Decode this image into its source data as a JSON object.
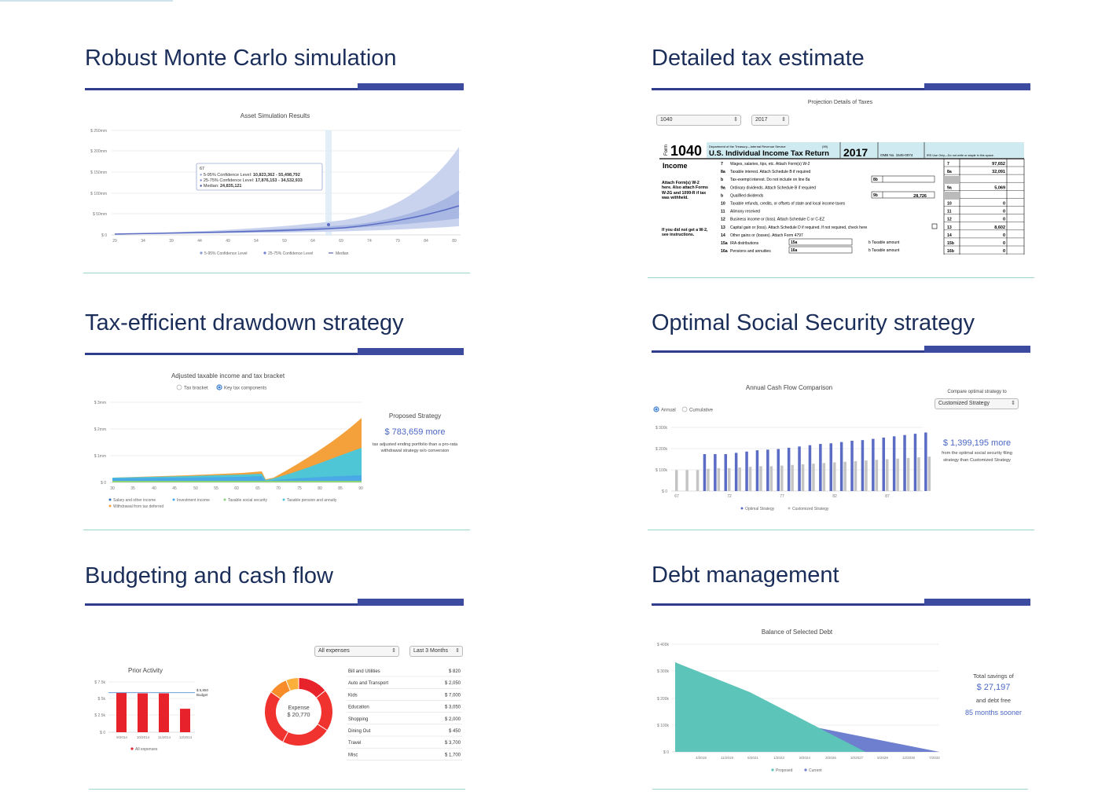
{
  "features": {
    "monte_carlo": {
      "title": "Robust Monte Carlo simulation"
    },
    "tax_estimate": {
      "title": "Detailed tax estimate"
    },
    "drawdown": {
      "title": "Tax-efficient drawdown strategy"
    },
    "social_security": {
      "title": "Optimal Social Security strategy"
    },
    "budgeting": {
      "title": "Budgeting and cash flow"
    },
    "debt": {
      "title": "Debt management"
    }
  },
  "colors": {
    "heading": "#1b2e5a",
    "accent": "#3c4aa0",
    "teal": "#5cc4b8",
    "blue": "#6f7fd0",
    "orange": "#f4a13b",
    "red": "#e8222a"
  },
  "monte_carlo_chart": {
    "title": "Asset Simulation Results",
    "y_ticks": [
      "$ 250mm",
      "$ 200mm",
      "$ 150mm",
      "$ 100mm",
      "$ 50mm",
      "$ 0"
    ],
    "x_ticks": [
      "29",
      "34",
      "39",
      "44",
      "49",
      "54",
      "59",
      "64",
      "69",
      "74",
      "79",
      "84",
      "89"
    ],
    "tooltip": {
      "age": "67",
      "line1_label": "5-95% Confidence Level:",
      "line1_value": "10,823,362 - 55,498,792",
      "line2_label": "25-75% Confidence Level:",
      "line2_value": "17,876,153 - 34,532,933",
      "line3_label": "Median:",
      "line3_value": "24,835,121"
    },
    "legend": [
      "5-95% Confidence Level",
      "25-75% Confidence Level",
      "Median"
    ]
  },
  "tax_form": {
    "header": "Projection Details of Taxes",
    "select_form": "1040",
    "select_year": "2017",
    "form_number": "1040",
    "dept": "Department of the Treasury—Internal Revenue Service",
    "code": "(99)",
    "form_title": "U.S. Individual Income Tax Return",
    "year": "2017",
    "omb": "OMB No. 1545-0074",
    "irs_use": "IRS Use Only—Do not write or staple in this space.",
    "section": "Income",
    "attach_note": "Attach Form(s) W-2 here. Also attach Forms W-2G and 1099-R if tax was withheld.",
    "no_w2_note": "If you did not get a W-2, see instructions.",
    "lines": [
      {
        "num": "7",
        "label": "Wages, salaries, tips, etc. Attach Form(s) W-2",
        "box": "7",
        "value": "97,652"
      },
      {
        "num": "8a",
        "label": "Taxable interest. Attach Schedule B if required",
        "box": "8a",
        "value": "32,091"
      },
      {
        "num": "b",
        "label": "Tax-exempt interest. Do not include on line 8a",
        "box": "",
        "value": ""
      },
      {
        "num": "9a",
        "label": "Ordinary dividends. Attach Schedule B if required",
        "box": "9a",
        "value": "5,069"
      },
      {
        "num": "b",
        "label": "Qualified dividends",
        "box": "",
        "value": ""
      },
      {
        "num": "10",
        "label": "Taxable refunds, credits, or offsets of state and local income taxes",
        "box": "10",
        "value": "0"
      },
      {
        "num": "11",
        "label": "Alimony received",
        "box": "11",
        "value": "0"
      },
      {
        "num": "12",
        "label": "Business income or (loss). Attach Schedule C or C-EZ",
        "box": "12",
        "value": "0"
      },
      {
        "num": "13",
        "label": "Capital gain or (loss). Attach Schedule D if required. If not required, check here",
        "box": "13",
        "value": "8,602"
      },
      {
        "num": "14",
        "label": "Other gains or (losses). Attach Form 4797",
        "box": "14",
        "value": "0"
      },
      {
        "num": "15a",
        "label": "IRA distributions",
        "box": "15b",
        "value": "0"
      },
      {
        "num": "16a",
        "label": "Pensions and annuities",
        "box": "16b",
        "value": "0"
      }
    ],
    "inner_8b": "8b",
    "inner_9b": "9b",
    "inner_9b_value": "28,726",
    "inner_15a": "15a",
    "inner_16a": "16a",
    "taxable_amount": "b Taxable amount"
  },
  "drawdown_chart": {
    "title": "Adjusted taxable income and tax bracket",
    "radio1": "Tax bracket",
    "radio2": "Key tax components",
    "y_ticks": [
      "$ 3mm",
      "$ 2mm",
      "$ 1mm",
      "$ 0"
    ],
    "x_ticks": [
      "30",
      "35",
      "40",
      "45",
      "50",
      "55",
      "60",
      "65",
      "70",
      "75",
      "80",
      "85",
      "90"
    ],
    "legend": [
      "Salary and other income",
      "Investment income",
      "Taxable social security",
      "Taxable pension and annuity",
      "Withdrawal from tax deferred"
    ],
    "side_title": "Proposed Strategy",
    "side_amount": "$ 783,659 more",
    "side_note": "tax adjusted ending portfolio than a pro-rata withdrawal strategy w/o conversion"
  },
  "ss_chart": {
    "title": "Annual Cash Flow Comparison",
    "radio1": "Annual",
    "radio2": "Cumulative",
    "y_ticks": [
      "$ 300k",
      "$ 200k",
      "$ 100k",
      "$ 0"
    ],
    "x_ticks": [
      "67",
      "72",
      "77",
      "82",
      "87"
    ],
    "legend": [
      "Optimal Strategy",
      "Customized Strategy"
    ],
    "compare_label": "Compare optimal strategy to",
    "compare_value": "Customized Strategy",
    "side_amount": "$ 1,399,195 more",
    "side_note": "from the optimal social security filing strategy than Customized Strategy",
    "optimal": [
      0,
      0,
      0,
      0.58,
      0.58,
      0.58,
      0.6,
      0.62,
      0.64,
      0.65,
      0.66,
      0.68,
      0.7,
      0.72,
      0.74,
      0.75,
      0.77,
      0.79,
      0.8,
      0.82,
      0.84,
      0.86,
      0.88,
      0.9,
      0.92
    ],
    "customized": [
      0.33,
      0.33,
      0.33,
      0.35,
      0.36,
      0.36,
      0.37,
      0.38,
      0.39,
      0.39,
      0.4,
      0.41,
      0.42,
      0.43,
      0.44,
      0.45,
      0.46,
      0.47,
      0.48,
      0.49,
      0.5,
      0.51,
      0.52,
      0.53,
      0.54
    ]
  },
  "budget": {
    "chart_title": "Prior Activity",
    "y_ticks": [
      "$ 7.5k",
      "$ 5k",
      "$ 2.5k",
      "$ 0"
    ],
    "months": [
      "9/2014",
      "10/2014",
      "11/2014",
      "12/2014"
    ],
    "values": [
      5900,
      5800,
      5800,
      3500
    ],
    "budget_label": "$ 5,850",
    "budget_sub": "Budget",
    "legend": "All expenses",
    "select_category": "All expenses",
    "select_period": "Last 3 Months",
    "donut_label": "Expense",
    "donut_value": "$ 20,770",
    "categories": [
      {
        "name": "Bill and Utilities",
        "amount": "$ 820"
      },
      {
        "name": "Auto and Transport",
        "amount": "$ 2,050"
      },
      {
        "name": "Kids",
        "amount": "$ 7,000"
      },
      {
        "name": "Education",
        "amount": "$ 3,050"
      },
      {
        "name": "Shopping",
        "amount": "$ 2,000"
      },
      {
        "name": "Dining Out",
        "amount": "$ 450"
      },
      {
        "name": "Travel",
        "amount": "$ 3,700"
      },
      {
        "name": "Misc",
        "amount": "$ 1,700"
      }
    ]
  },
  "debt_chart": {
    "title": "Balance of Selected Debt",
    "y_ticks": [
      "$ 400k",
      "$ 300k",
      "$ 200k",
      "$ 100k",
      "$ 0"
    ],
    "x_ticks": [
      "4/2018",
      "11/2019",
      "6/2021",
      "1/2023",
      "8/2024",
      "3/2026",
      "10/2027",
      "5/2029",
      "12/2030",
      "7/2032"
    ],
    "legend": [
      "Proposed",
      "Current"
    ],
    "side_line1": "Total savings of",
    "side_amount": "$ 27,197",
    "side_line2": "and debt free",
    "side_line3": "85 months sooner"
  }
}
